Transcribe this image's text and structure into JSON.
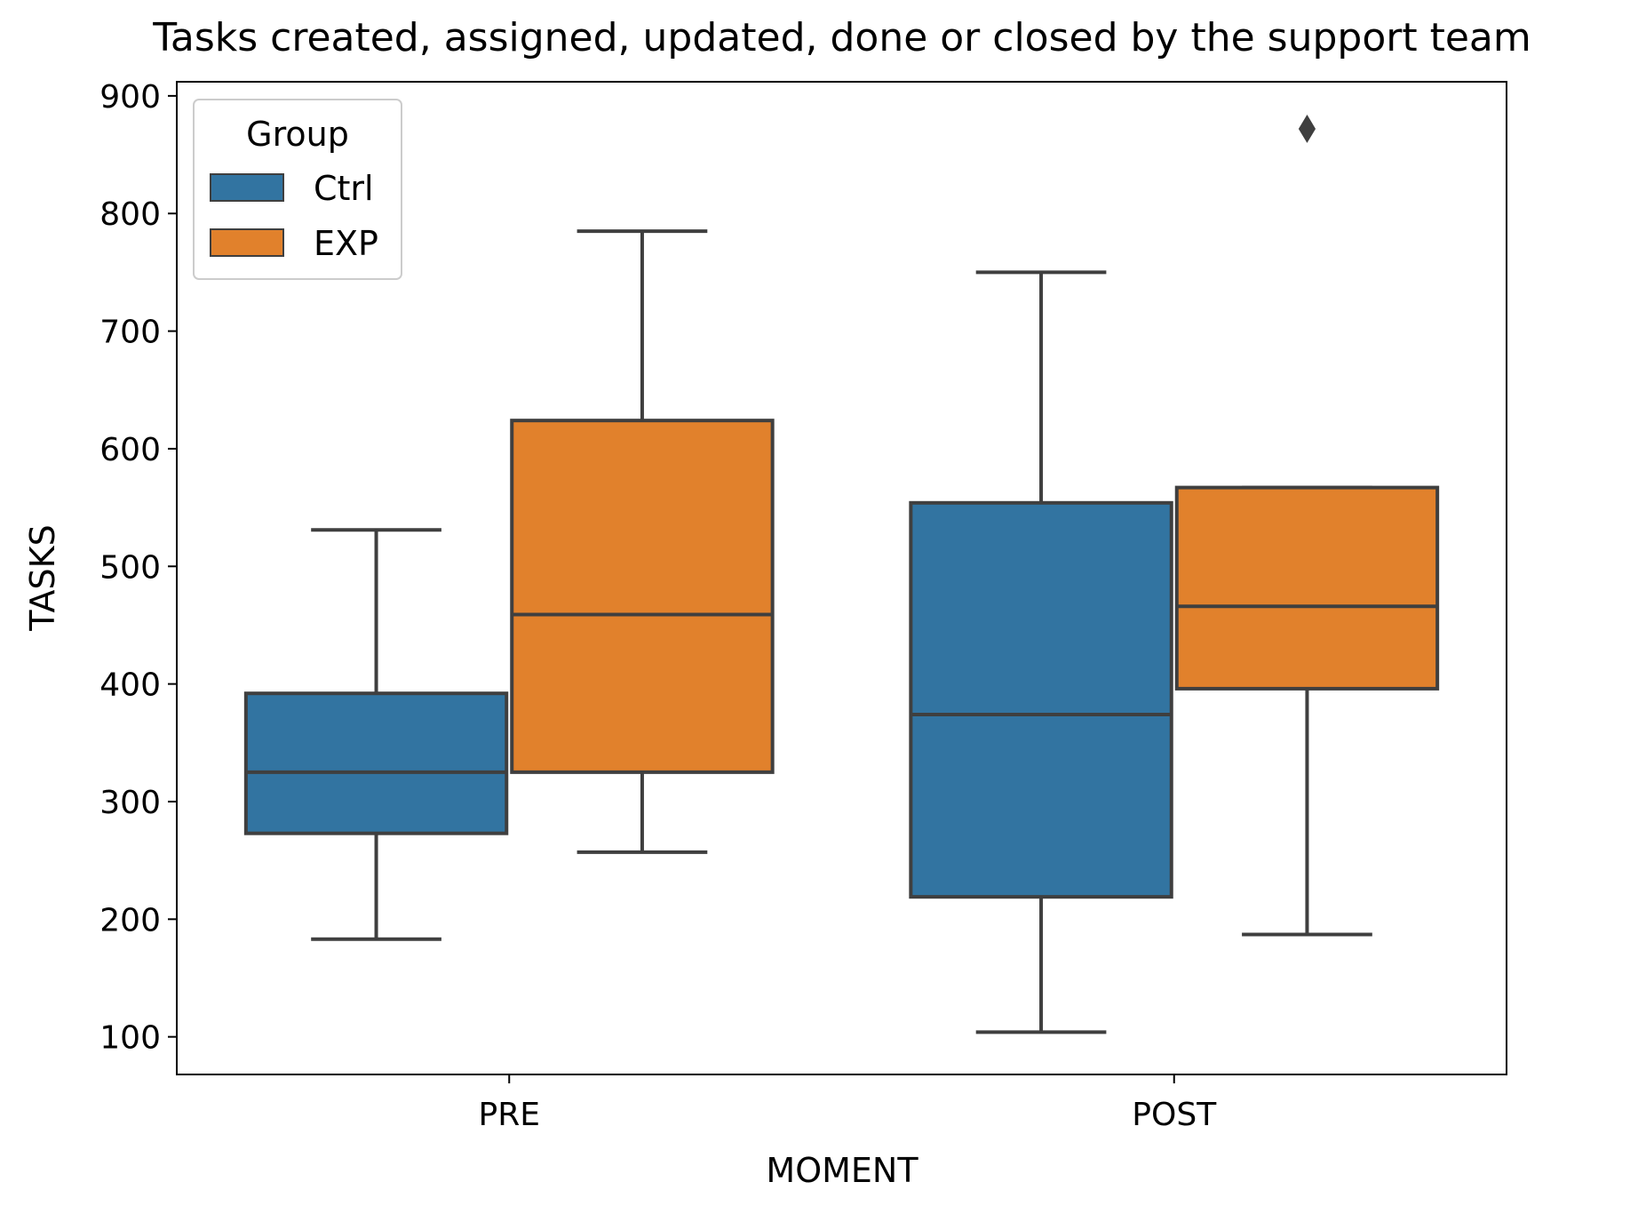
{
  "chart_data": {
    "type": "box",
    "title": "Tasks created, assigned, updated, done or closed by the support team",
    "xlabel": "MOMENT",
    "ylabel": "TASKS",
    "categories": [
      "PRE",
      "POST"
    ],
    "ylim": [
      68,
      912
    ],
    "yticks": [
      100,
      200,
      300,
      400,
      500,
      600,
      700,
      800,
      900
    ],
    "grid": false,
    "legend": {
      "title": "Group",
      "placement": "upper-left",
      "entries": [
        "Ctrl",
        "EXP"
      ]
    },
    "series": [
      {
        "name": "Ctrl",
        "color": "#3274a1",
        "boxes": [
          {
            "category": "PRE",
            "whisker_low": 183,
            "q1": 273,
            "median": 325,
            "q3": 392,
            "whisker_high": 531,
            "outliers": []
          },
          {
            "category": "POST",
            "whisker_low": 104,
            "q1": 219,
            "median": 374,
            "q3": 554,
            "whisker_high": 750,
            "outliers": []
          }
        ]
      },
      {
        "name": "EXP",
        "color": "#e1812c",
        "boxes": [
          {
            "category": "PRE",
            "whisker_low": 257,
            "q1": 325,
            "median": 459,
            "q3": 624,
            "whisker_high": 785,
            "outliers": []
          },
          {
            "category": "POST",
            "whisker_low": 187,
            "q1": 396,
            "median": 466,
            "q3": 567,
            "whisker_high": 567,
            "outliers": [
              872
            ]
          }
        ]
      }
    ],
    "style": {
      "line_color": "#3f3f3f",
      "axis_color": "#000000"
    }
  }
}
